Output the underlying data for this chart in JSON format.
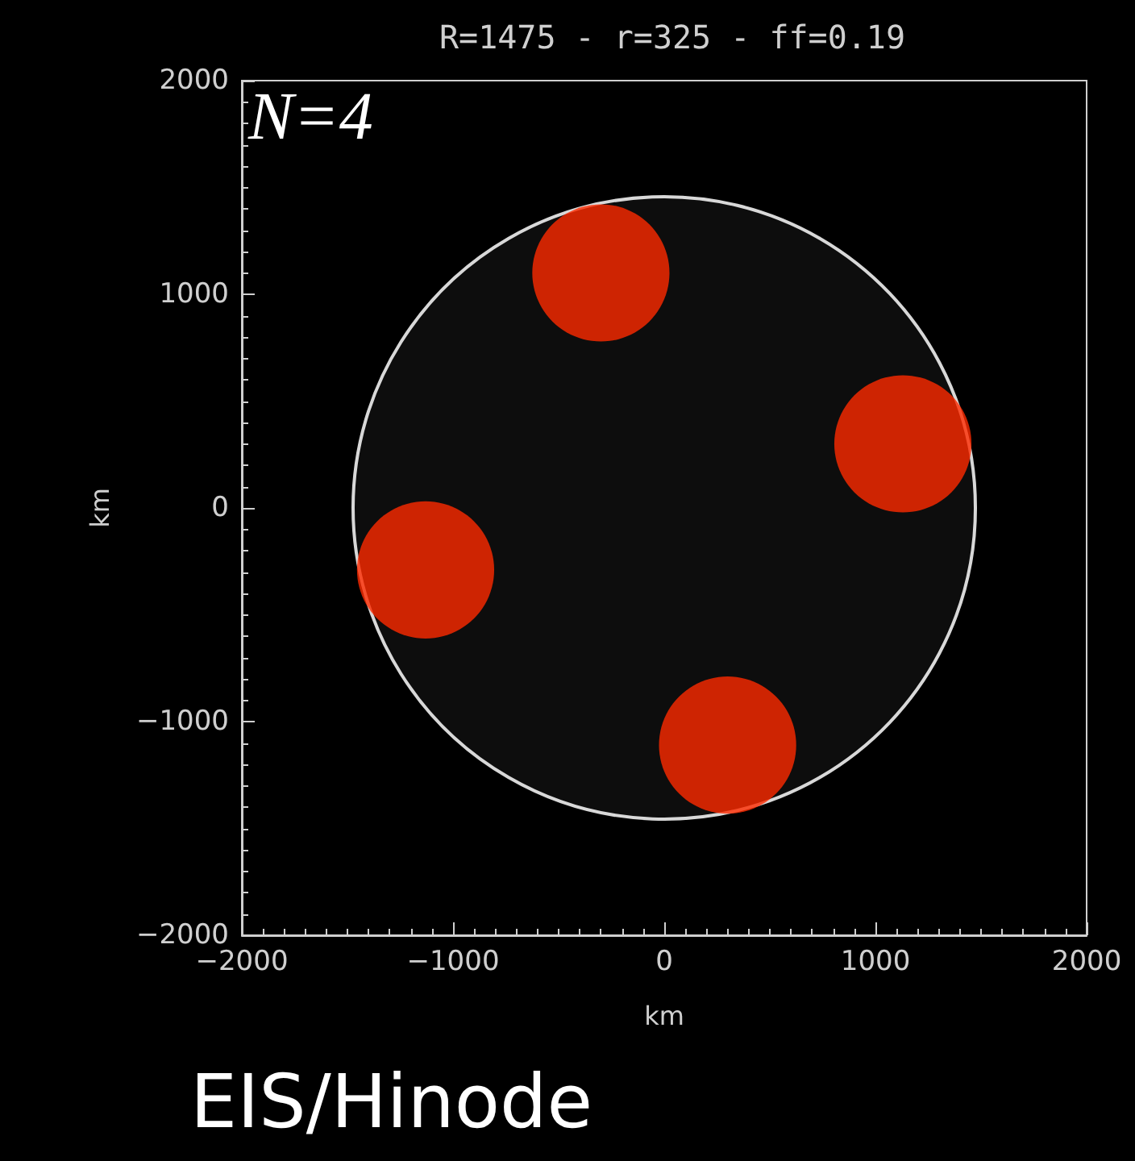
{
  "chart_data": {
    "type": "bubble",
    "title": "R=1475 - r=325 - ff=0.19",
    "xlabel": "km",
    "ylabel": "km",
    "xlim": [
      -2000,
      2000
    ],
    "ylim": [
      -2000,
      2000
    ],
    "xticks": [
      -2000,
      -1000,
      0,
      1000,
      2000
    ],
    "yticks": [
      -2000,
      -1000,
      0,
      1000,
      2000
    ],
    "grid": false,
    "series": [
      {
        "color": "#d8d8d8",
        "x": [
          0
        ],
        "values": [
          0
        ],
        "sizes": [
          1
        ]
      },
      {
        "color": "#ff2a00",
        "x": [
          -300,
          1130,
          -1130,
          300
        ],
        "values": [
          1100,
          300,
          -290,
          -1110
        ],
        "sizes": [
          0.0486,
          0.0486,
          0.0486,
          0.0486
        ]
      }
    ],
    "annotations": [
      "N=4",
      "EIS/Hinode"
    ]
  }
}
